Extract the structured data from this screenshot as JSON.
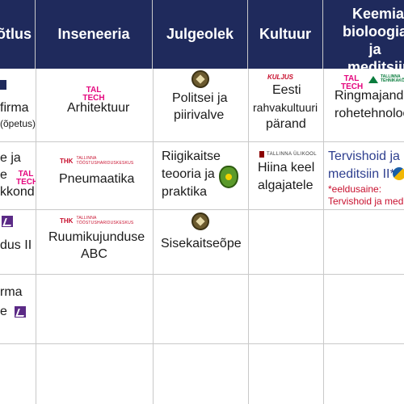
{
  "headers": [
    "õtlus",
    "Inseneeria",
    "Julgeolek",
    "Kultuur",
    "Keemia,\nbioloogia ja\nmeditsiin"
  ],
  "header_lines": [
    "Keemia,",
    "bioloogia ja",
    "meditsiin"
  ],
  "col0": {
    "r0": {
      "logo": "ow",
      "line1": "firma",
      "line2": "(õpetus)"
    },
    "r1": {
      "line1": "e ja",
      "line2": "e",
      "line3": "kkond",
      "logo": "TAL TECH"
    },
    "r2": {
      "line1": "dus II"
    },
    "r3": {
      "line1": "rma",
      "line2": "e"
    }
  },
  "col1": {
    "r0": {
      "logo": "TAL TECH",
      "title": "Arhitektuur"
    },
    "r1": {
      "logo_mark": "THK",
      "logo_text": "TALLINNA TÖÖSTUSHARIDUSKESKUS",
      "title": "Pneumaatika"
    },
    "r2": {
      "logo_mark": "THK",
      "logo_text": "TALLINNA TÖÖSTUSHARIDUSKESKUS",
      "title1": "Ruumikujunduse",
      "title2": "ABC"
    }
  },
  "col2": {
    "r0": {
      "title1": "Politsei ja",
      "title2": "piirivalve"
    },
    "r1": {
      "title1": "Riigikaitse",
      "title2": "teooria ja",
      "title3": "praktika"
    },
    "r2": {
      "title": "Sisekaitseõpe"
    }
  },
  "col3": {
    "r0": {
      "logo": "KULJUS",
      "title1": "Eesti",
      "title2": "rahvakultuuri",
      "title3": "pärand"
    },
    "r1": {
      "logo": "TALLINNA ÜLIKOOL",
      "title1": "Hiina keel",
      "title2": "algajatele"
    }
  },
  "col4": {
    "r0": {
      "logo1": "TAL TECH",
      "logo2": "TALLINNA TEHNIKAKÕRG",
      "title1": "Ringmajandus",
      "title2": "rohetehnoloo"
    },
    "r1": {
      "title1": "Tervishoid ja",
      "title2": "meditsiin II*",
      "note1": "*eeldusaine:",
      "note2": "Tervishoid ja meditsii"
    }
  }
}
